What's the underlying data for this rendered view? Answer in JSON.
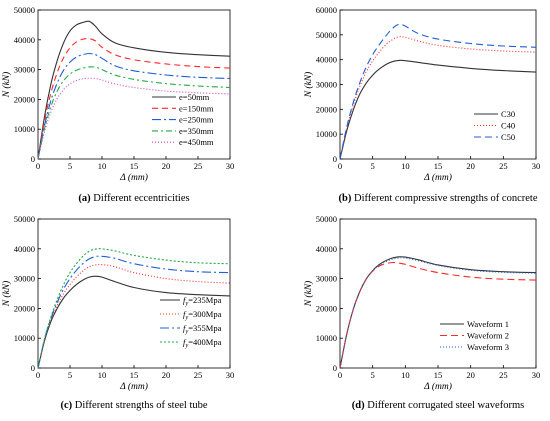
{
  "figure": {
    "panels": [
      {
        "caption_bold": "(a)",
        "caption_rest": " Different eccentricities"
      },
      {
        "caption_bold": "(b)",
        "caption_rest": " Different compressive strengths of concrete"
      },
      {
        "caption_bold": "(c)",
        "caption_rest": " Different strengths of steel tube"
      },
      {
        "caption_bold": "(d)",
        "caption_rest": " Different corrugated steel waveforms"
      }
    ]
  },
  "chart_data": [
    {
      "type": "line",
      "xlabel": "Δ (mm)",
      "ylabel": "N (kN)",
      "xlim": [
        0,
        30
      ],
      "ylim": [
        0,
        50000
      ],
      "xticks": [
        0,
        5,
        10,
        15,
        20,
        25,
        30
      ],
      "yticks": [
        0,
        10000,
        20000,
        30000,
        40000,
        50000
      ],
      "grid": false,
      "legend_position": "bottom-right",
      "series": [
        {
          "name": "e=50mm",
          "color": "#333333",
          "dash": "solid",
          "x": [
            0,
            1,
            2,
            3,
            4,
            5,
            6,
            7,
            8,
            9,
            10,
            12,
            15,
            20,
            25,
            30
          ],
          "y": [
            0,
            14000,
            25000,
            33000,
            39000,
            43000,
            45000,
            45800,
            46200,
            44500,
            42000,
            39000,
            37300,
            35800,
            35000,
            34500
          ]
        },
        {
          "name": "e=150mm",
          "color": "#ff2a2a",
          "dash": "6,4",
          "x": [
            0,
            1,
            2,
            3,
            4,
            5,
            6,
            7,
            8,
            9,
            10,
            12,
            15,
            20,
            25,
            30
          ],
          "y": [
            0,
            12500,
            22000,
            29000,
            34000,
            37300,
            39300,
            40200,
            40400,
            39600,
            37500,
            35000,
            33300,
            31900,
            31000,
            30500
          ]
        },
        {
          "name": "e=250mm",
          "color": "#1f5fd6",
          "dash": "9,3,2,3",
          "x": [
            0,
            1,
            2,
            3,
            4,
            5,
            6,
            7,
            8,
            9,
            10,
            12,
            15,
            20,
            25,
            30
          ],
          "y": [
            0,
            11000,
            19500,
            25500,
            29800,
            32500,
            34200,
            35000,
            35400,
            35000,
            33800,
            31300,
            29600,
            28200,
            27400,
            27000
          ]
        },
        {
          "name": "e=350mm",
          "color": "#22a845",
          "dash": "6,3,2,3",
          "x": [
            0,
            1,
            2,
            3,
            4,
            5,
            6,
            7,
            8,
            9,
            10,
            12,
            15,
            20,
            25,
            30
          ],
          "y": [
            0,
            10000,
            17500,
            22800,
            26300,
            28500,
            29800,
            30500,
            30900,
            30800,
            30000,
            28200,
            26700,
            25300,
            24500,
            24000
          ]
        },
        {
          "name": "e=450mm",
          "color": "#cc44cc",
          "dash": "1,2",
          "x": [
            0,
            1,
            2,
            3,
            4,
            5,
            6,
            7,
            8,
            9,
            10,
            12,
            15,
            20,
            25,
            30
          ],
          "y": [
            0,
            9000,
            15600,
            20300,
            23300,
            25200,
            26300,
            26900,
            27100,
            27000,
            26500,
            25200,
            24000,
            22800,
            22200,
            21800
          ]
        }
      ]
    },
    {
      "type": "line",
      "xlabel": "Δ (mm)",
      "ylabel": "N (kN)",
      "xlim": [
        0,
        30
      ],
      "ylim": [
        0,
        60000
      ],
      "xticks": [
        0,
        5,
        10,
        15,
        20,
        25,
        30
      ],
      "yticks": [
        0,
        10000,
        20000,
        30000,
        40000,
        50000,
        60000
      ],
      "grid": false,
      "legend_position": "bottom-right",
      "series": [
        {
          "name": "C30",
          "color": "#333333",
          "dash": "solid",
          "x": [
            0,
            1,
            2,
            3,
            4,
            5,
            6,
            7,
            8,
            9,
            10,
            12,
            15,
            20,
            25,
            30
          ],
          "y": [
            0,
            11000,
            19500,
            26000,
            30500,
            33800,
            36200,
            38000,
            39200,
            39700,
            39600,
            38900,
            37800,
            36500,
            35600,
            35000
          ]
        },
        {
          "name": "C40",
          "color": "#ff2a2a",
          "dash": "1,2",
          "x": [
            0,
            1,
            2,
            3,
            4,
            5,
            6,
            7,
            8,
            9,
            10,
            12,
            15,
            20,
            25,
            30
          ],
          "y": [
            0,
            12000,
            21500,
            29000,
            35000,
            39500,
            43000,
            46000,
            48000,
            49200,
            49000,
            47500,
            45800,
            44300,
            43500,
            43000
          ]
        },
        {
          "name": "C50",
          "color": "#1f5fd6",
          "dash": "7,4",
          "x": [
            0,
            1,
            2,
            3,
            4,
            5,
            6,
            7,
            8,
            9,
            10,
            12,
            15,
            20,
            25,
            30
          ],
          "y": [
            0,
            12500,
            22500,
            30500,
            37000,
            42000,
            46000,
            49500,
            52500,
            54200,
            53500,
            50500,
            48300,
            46500,
            45500,
            45000
          ]
        }
      ]
    },
    {
      "type": "line",
      "xlabel": "Δ (mm)",
      "ylabel": "N (kN)",
      "xlim": [
        0,
        30
      ],
      "ylim": [
        0,
        50000
      ],
      "xticks": [
        0,
        5,
        10,
        15,
        20,
        25,
        30
      ],
      "yticks": [
        0,
        10000,
        20000,
        30000,
        40000,
        50000
      ],
      "grid": false,
      "legend_position": "bottom-right",
      "series": [
        {
          "name": "fy=235Mpa",
          "color": "#333333",
          "dash": "solid",
          "x": [
            0,
            1,
            2,
            3,
            4,
            5,
            6,
            7,
            8,
            9,
            10,
            12,
            15,
            20,
            25,
            30
          ],
          "y": [
            0,
            9000,
            15500,
            20000,
            23500,
            26000,
            28000,
            29500,
            30500,
            30800,
            30500,
            29000,
            27000,
            25300,
            24600,
            24200
          ]
        },
        {
          "name": "fy=300Mpa",
          "color": "#ff2a2a",
          "dash": "1,2",
          "x": [
            0,
            1,
            2,
            3,
            4,
            5,
            6,
            7,
            8,
            9,
            10,
            12,
            15,
            20,
            25,
            30
          ],
          "y": [
            0,
            9300,
            16000,
            21000,
            25000,
            28000,
            30500,
            32500,
            34000,
            34600,
            34700,
            34000,
            32000,
            30000,
            29000,
            28500
          ]
        },
        {
          "name": "fy=355Mpa",
          "color": "#1f5fd6",
          "dash": "9,3,2,3",
          "x": [
            0,
            1,
            2,
            3,
            4,
            5,
            6,
            7,
            8,
            9,
            10,
            12,
            15,
            20,
            25,
            30
          ],
          "y": [
            0,
            9500,
            16500,
            22000,
            26500,
            30000,
            32800,
            35000,
            36600,
            37400,
            37500,
            36800,
            35000,
            33200,
            32300,
            32000
          ]
        },
        {
          "name": "fy=400Mpa",
          "color": "#22a845",
          "dash": "2,2",
          "x": [
            0,
            1,
            2,
            3,
            4,
            5,
            6,
            7,
            8,
            9,
            10,
            12,
            15,
            20,
            25,
            30
          ],
          "y": [
            0,
            9700,
            17000,
            23000,
            28000,
            32000,
            35000,
            37500,
            39200,
            39900,
            40000,
            39300,
            37800,
            36200,
            35300,
            35000
          ]
        }
      ]
    },
    {
      "type": "line",
      "xlabel": "Δ (mm)",
      "ylabel": "N (kN)",
      "xlim": [
        0,
        30
      ],
      "ylim": [
        0,
        50000
      ],
      "xticks": [
        0,
        5,
        10,
        15,
        20,
        25,
        30
      ],
      "yticks": [
        0,
        10000,
        20000,
        30000,
        40000,
        50000
      ],
      "grid": false,
      "legend_position": "bottom-right",
      "series": [
        {
          "name": "Waveform 1",
          "color": "#333333",
          "dash": "solid",
          "x": [
            0,
            1,
            2,
            3,
            4,
            5,
            6,
            7,
            8,
            9,
            10,
            12,
            15,
            20,
            25,
            30
          ],
          "y": [
            0,
            11000,
            19500,
            25500,
            29800,
            32700,
            34700,
            36000,
            36900,
            37300,
            37200,
            36300,
            34600,
            33000,
            32300,
            32000
          ]
        },
        {
          "name": "Waveform 2",
          "color": "#ff2a2a",
          "dash": "7,4",
          "x": [
            0,
            1,
            2,
            3,
            4,
            5,
            6,
            7,
            8,
            9,
            10,
            12,
            15,
            20,
            25,
            30
          ],
          "y": [
            0,
            11000,
            19500,
            25500,
            29800,
            32500,
            34200,
            35000,
            35400,
            35200,
            34800,
            33500,
            32000,
            30500,
            29800,
            29500
          ]
        },
        {
          "name": "Waveform 3",
          "color": "#1f5fd6",
          "dash": "1,2",
          "x": [
            0,
            1,
            2,
            3,
            4,
            5,
            6,
            7,
            8,
            9,
            10,
            12,
            15,
            20,
            25,
            30
          ],
          "y": [
            0,
            11000,
            19500,
            25500,
            29800,
            32600,
            34500,
            35700,
            36500,
            36900,
            36900,
            36000,
            34400,
            32800,
            32100,
            31800
          ]
        }
      ]
    }
  ]
}
